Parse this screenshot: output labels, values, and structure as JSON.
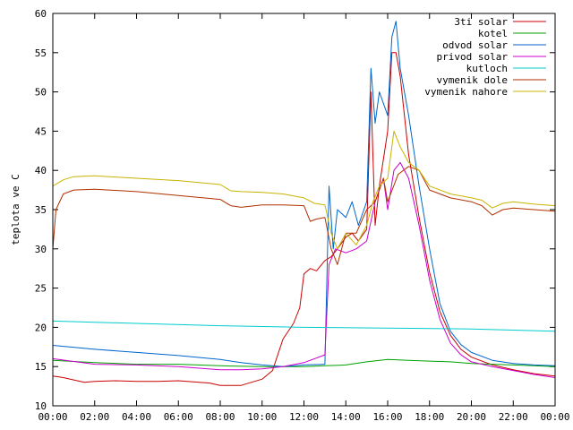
{
  "chart_data": {
    "type": "line",
    "ylabel": "teplota ve C",
    "xlim": [
      0,
      24
    ],
    "ylim": [
      10,
      60
    ],
    "x_ticks": [
      "00:00",
      "02:00",
      "04:00",
      "06:00",
      "08:00",
      "10:00",
      "12:00",
      "14:00",
      "16:00",
      "18:00",
      "20:00",
      "22:00",
      "00:00"
    ],
    "y_ticks": [
      "10",
      "15",
      "20",
      "25",
      "30",
      "35",
      "40",
      "45",
      "50",
      "55",
      "60"
    ],
    "y_tick_values": [
      10,
      15,
      20,
      25,
      30,
      35,
      40,
      45,
      50,
      55,
      60
    ],
    "legend_position": "top-right",
    "grid": false,
    "series": [
      {
        "name": "3ti solar",
        "color": "#cc0000",
        "points": [
          [
            0,
            13.8
          ],
          [
            0.5,
            13.6
          ],
          [
            1,
            13.3
          ],
          [
            1.5,
            13.0
          ],
          [
            2,
            13.1
          ],
          [
            3,
            13.2
          ],
          [
            4,
            13.1
          ],
          [
            5,
            13.1
          ],
          [
            6,
            13.2
          ],
          [
            7,
            13.0
          ],
          [
            7.5,
            12.9
          ],
          [
            8,
            12.6
          ],
          [
            9,
            12.6
          ],
          [
            9.5,
            13.0
          ],
          [
            10,
            13.4
          ],
          [
            10.5,
            14.5
          ],
          [
            11,
            18.5
          ],
          [
            11.5,
            20.5
          ],
          [
            11.8,
            22.5
          ],
          [
            12,
            26.8
          ],
          [
            12.3,
            27.5
          ],
          [
            12.6,
            27.2
          ],
          [
            13,
            28.5
          ],
          [
            13.3,
            29.0
          ],
          [
            13.6,
            30.0
          ],
          [
            14,
            31.5
          ],
          [
            14.3,
            32.0
          ],
          [
            14.6,
            31.0
          ],
          [
            15,
            32.5
          ],
          [
            15.2,
            50
          ],
          [
            15.4,
            33
          ],
          [
            15.6,
            38
          ],
          [
            16,
            45
          ],
          [
            16.2,
            55
          ],
          [
            16.4,
            55
          ],
          [
            16.6,
            52
          ],
          [
            17,
            42
          ],
          [
            17.5,
            34
          ],
          [
            18,
            27
          ],
          [
            18.5,
            22
          ],
          [
            19,
            19
          ],
          [
            19.5,
            17.2
          ],
          [
            20,
            16.2
          ],
          [
            21,
            15.2
          ],
          [
            22,
            14.6
          ],
          [
            23,
            14.1
          ],
          [
            24,
            13.8
          ]
        ]
      },
      {
        "name": "kotel",
        "color": "#00a000",
        "points": [
          [
            0,
            15.8
          ],
          [
            2,
            15.5
          ],
          [
            4,
            15.3
          ],
          [
            6,
            15.3
          ],
          [
            8,
            15.1
          ],
          [
            10,
            15.0
          ],
          [
            12,
            15.0
          ],
          [
            13,
            15.1
          ],
          [
            14,
            15.2
          ],
          [
            15,
            15.6
          ],
          [
            16,
            15.9
          ],
          [
            17,
            15.8
          ],
          [
            18,
            15.7
          ],
          [
            19,
            15.6
          ],
          [
            20,
            15.4
          ],
          [
            21,
            15.3
          ],
          [
            22,
            15.2
          ],
          [
            23,
            15.1
          ],
          [
            24,
            15.0
          ]
        ]
      },
      {
        "name": "odvod solar",
        "color": "#0066cc",
        "points": [
          [
            0,
            17.7
          ],
          [
            2,
            17.2
          ],
          [
            4,
            16.8
          ],
          [
            6,
            16.4
          ],
          [
            8,
            15.9
          ],
          [
            9,
            15.5
          ],
          [
            10,
            15.2
          ],
          [
            11,
            15.0
          ],
          [
            12,
            15.2
          ],
          [
            13,
            15.3
          ],
          [
            13.2,
            38
          ],
          [
            13.4,
            30
          ],
          [
            13.6,
            35
          ],
          [
            14,
            34
          ],
          [
            14.3,
            36
          ],
          [
            14.6,
            33
          ],
          [
            15,
            36
          ],
          [
            15.2,
            53
          ],
          [
            15.4,
            46
          ],
          [
            15.6,
            50
          ],
          [
            16,
            47
          ],
          [
            16.2,
            57
          ],
          [
            16.4,
            59
          ],
          [
            16.6,
            53
          ],
          [
            17,
            47
          ],
          [
            17.5,
            38
          ],
          [
            18,
            30
          ],
          [
            18.5,
            23
          ],
          [
            19,
            19.5
          ],
          [
            19.5,
            17.8
          ],
          [
            20,
            16.8
          ],
          [
            21,
            15.8
          ],
          [
            22,
            15.4
          ],
          [
            23,
            15.2
          ],
          [
            24,
            15.1
          ]
        ]
      },
      {
        "name": "privod solar",
        "color": "#cc00cc",
        "points": [
          [
            0,
            16.0
          ],
          [
            2,
            15.3
          ],
          [
            4,
            15.2
          ],
          [
            6,
            15.0
          ],
          [
            8,
            14.6
          ],
          [
            9,
            14.6
          ],
          [
            10,
            14.7
          ],
          [
            11,
            15.0
          ],
          [
            12,
            15.5
          ],
          [
            13,
            16.5
          ],
          [
            13.2,
            28
          ],
          [
            13.5,
            30
          ],
          [
            14,
            29.5
          ],
          [
            14.5,
            30
          ],
          [
            15,
            31
          ],
          [
            15.4,
            36
          ],
          [
            15.8,
            39
          ],
          [
            16,
            35
          ],
          [
            16.3,
            40
          ],
          [
            16.6,
            41
          ],
          [
            17,
            39
          ],
          [
            17.5,
            33
          ],
          [
            18,
            26
          ],
          [
            18.5,
            21
          ],
          [
            19,
            18
          ],
          [
            19.5,
            16.5
          ],
          [
            20,
            15.6
          ],
          [
            21,
            15.0
          ],
          [
            22,
            14.5
          ],
          [
            23,
            14.0
          ],
          [
            24,
            13.6
          ]
        ]
      },
      {
        "name": "kutloch",
        "color": "#00cccc",
        "points": [
          [
            0,
            20.8
          ],
          [
            4,
            20.5
          ],
          [
            8,
            20.2
          ],
          [
            12,
            20.0
          ],
          [
            16,
            19.9
          ],
          [
            20,
            19.8
          ],
          [
            24,
            19.5
          ]
        ]
      },
      {
        "name": "vymenik dole",
        "color": "#b03000",
        "points": [
          [
            0,
            30
          ],
          [
            0.15,
            35
          ],
          [
            0.5,
            37
          ],
          [
            1,
            37.5
          ],
          [
            2,
            37.6
          ],
          [
            4,
            37.3
          ],
          [
            6,
            36.8
          ],
          [
            8,
            36.3
          ],
          [
            8.5,
            35.5
          ],
          [
            9,
            35.3
          ],
          [
            10,
            35.6
          ],
          [
            11,
            35.6
          ],
          [
            12,
            35.5
          ],
          [
            12.3,
            33.5
          ],
          [
            12.6,
            33.8
          ],
          [
            13,
            34
          ],
          [
            13.3,
            30
          ],
          [
            13.6,
            28
          ],
          [
            14,
            32
          ],
          [
            14.5,
            32
          ],
          [
            15,
            35
          ],
          [
            15.4,
            36
          ],
          [
            15.8,
            39
          ],
          [
            16,
            36
          ],
          [
            16.5,
            39.5
          ],
          [
            17,
            40.5
          ],
          [
            17.5,
            40
          ],
          [
            18,
            37.5
          ],
          [
            19,
            36.5
          ],
          [
            20,
            36.0
          ],
          [
            20.5,
            35.5
          ],
          [
            21,
            34.3
          ],
          [
            21.5,
            35.0
          ],
          [
            22,
            35.2
          ],
          [
            23,
            35.0
          ],
          [
            24,
            34.8
          ]
        ]
      },
      {
        "name": "vymenik nahore",
        "color": "#c8b400",
        "points": [
          [
            0,
            38
          ],
          [
            0.5,
            38.8
          ],
          [
            1,
            39.2
          ],
          [
            2,
            39.3
          ],
          [
            4,
            39.0
          ],
          [
            6,
            38.7
          ],
          [
            8,
            38.2
          ],
          [
            8.5,
            37.4
          ],
          [
            9,
            37.3
          ],
          [
            10,
            37.2
          ],
          [
            11,
            37.0
          ],
          [
            12,
            36.5
          ],
          [
            12.5,
            35.8
          ],
          [
            13,
            35.6
          ],
          [
            13.3,
            32
          ],
          [
            13.6,
            30
          ],
          [
            14,
            32
          ],
          [
            14.5,
            30.5
          ],
          [
            15,
            33
          ],
          [
            15.3,
            36
          ],
          [
            15.6,
            38
          ],
          [
            16,
            39
          ],
          [
            16.3,
            45
          ],
          [
            16.6,
            43
          ],
          [
            17,
            41
          ],
          [
            17.5,
            40
          ],
          [
            18,
            38
          ],
          [
            19,
            37
          ],
          [
            20,
            36.5
          ],
          [
            20.5,
            36.2
          ],
          [
            21,
            35.2
          ],
          [
            21.5,
            35.8
          ],
          [
            22,
            36.0
          ],
          [
            23,
            35.7
          ],
          [
            24,
            35.5
          ]
        ]
      }
    ]
  }
}
